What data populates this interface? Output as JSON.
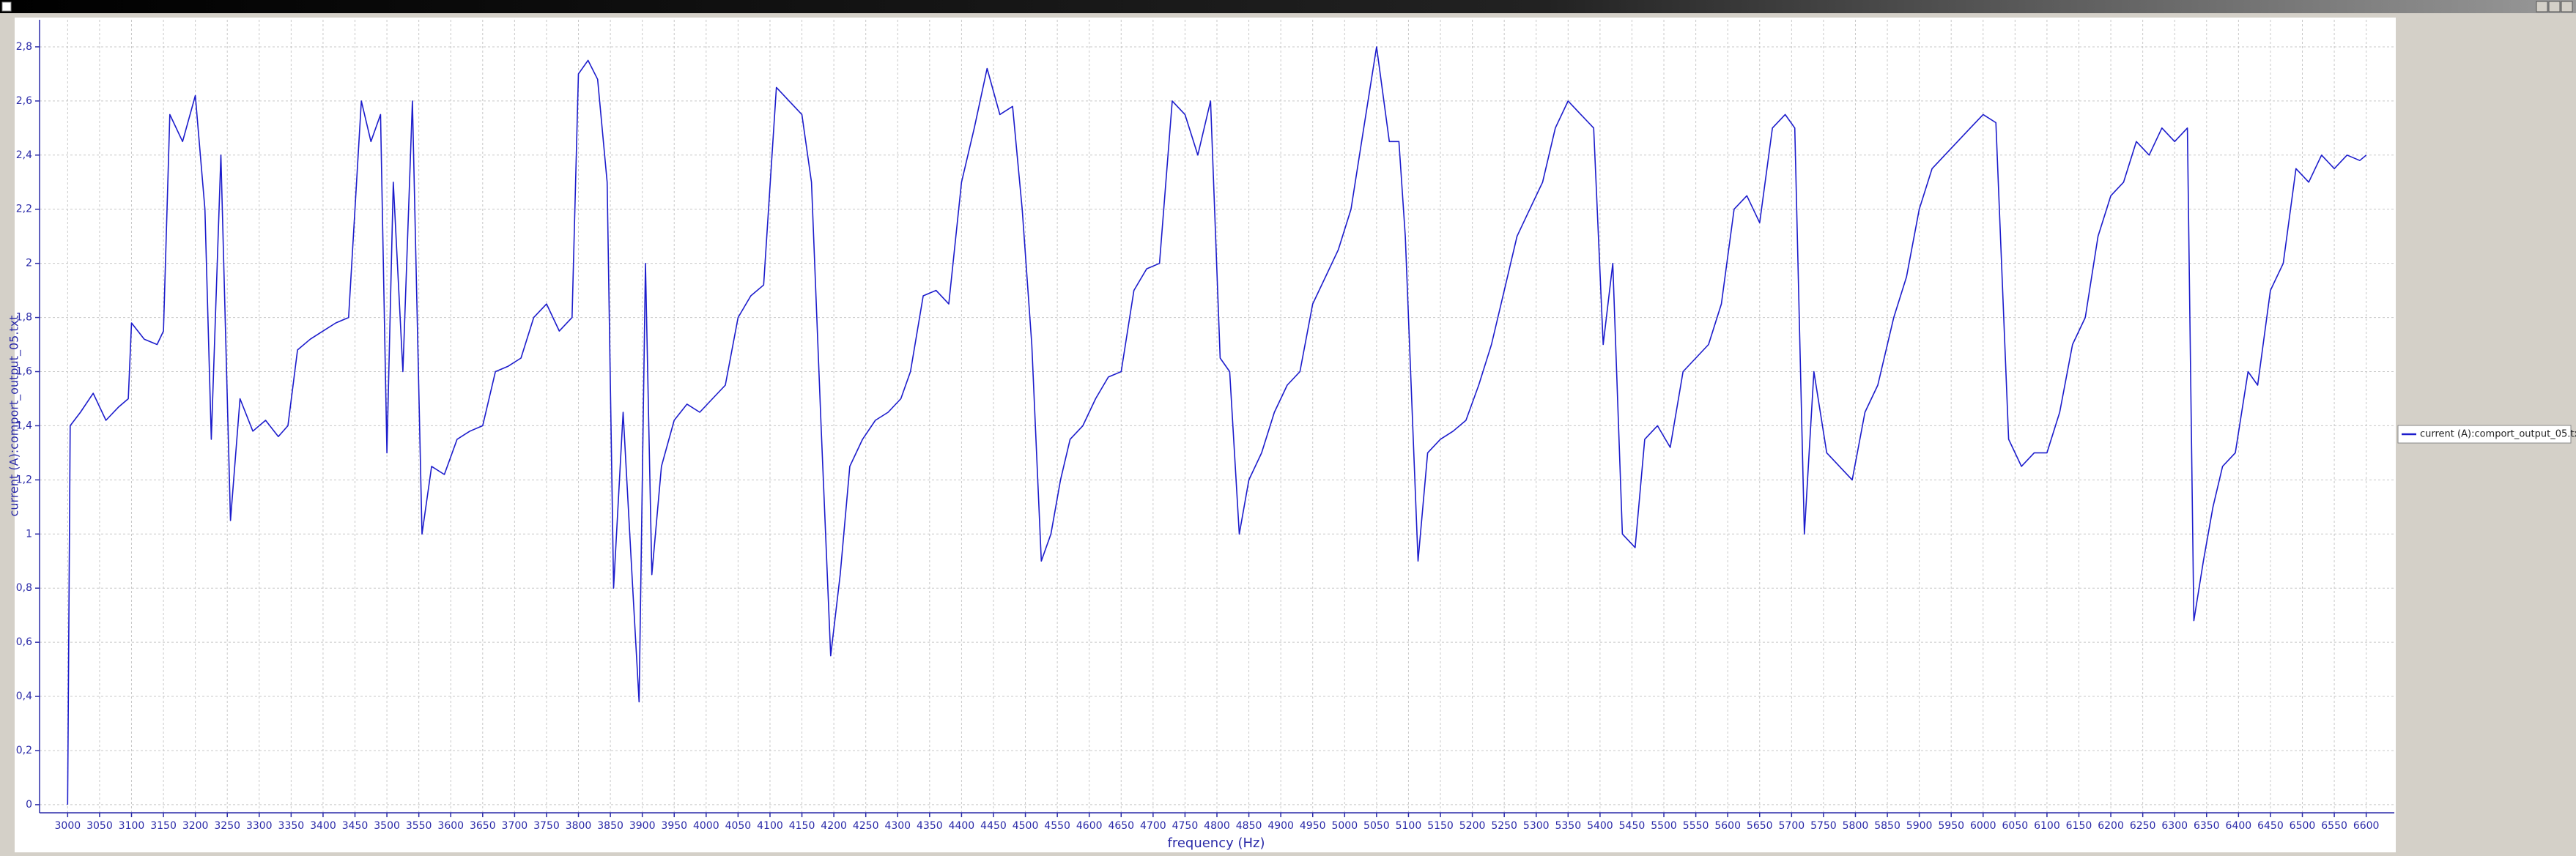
{
  "chart_data": {
    "type": "line",
    "x_label": "frequency (Hz)",
    "y_label": "current (A):comport_output_05.txt",
    "xlim": [
      2956,
      6644
    ],
    "ylim": [
      -0.03,
      2.9
    ],
    "xticks": [
      3000,
      3050,
      3100,
      3150,
      3200,
      3250,
      3300,
      3350,
      3400,
      3450,
      3500,
      3550,
      3600,
      3650,
      3700,
      3750,
      3800,
      3850,
      3900,
      3950,
      4000,
      4050,
      4100,
      4150,
      4200,
      4250,
      4300,
      4350,
      4400,
      4450,
      4500,
      4550,
      4600,
      4650,
      4700,
      4750,
      4800,
      4850,
      4900,
      4950,
      5000,
      5050,
      5100,
      5150,
      5200,
      5250,
      5300,
      5350,
      5400,
      5450,
      5500,
      5550,
      5600,
      5650,
      5700,
      5750,
      5800,
      5850,
      5900,
      5950,
      6000,
      6050,
      6100,
      6150,
      6200,
      6250,
      6300,
      6350,
      6400,
      6450,
      6500,
      6550,
      6600
    ],
    "yticks": [
      0,
      {
        "value": 0.2,
        "label": "0,2"
      },
      {
        "value": 0.4,
        "label": "0,4"
      },
      {
        "value": 0.6,
        "label": "0,6"
      },
      {
        "value": 0.8,
        "label": "0,8"
      },
      1,
      {
        "value": 1.2,
        "label": "1,2"
      },
      {
        "value": 1.4,
        "label": "1,4"
      },
      {
        "value": 1.6,
        "label": "1,6"
      },
      {
        "value": 1.8,
        "label": "1,8"
      },
      2,
      {
        "value": 2.2,
        "label": "2,2"
      },
      {
        "value": 2.4,
        "label": "2,4"
      },
      {
        "value": 2.6,
        "label": "2,6"
      },
      {
        "value": 2.8,
        "label": "2,8"
      }
    ],
    "grid": true,
    "legend": "right",
    "x": [
      3000,
      3004,
      3020,
      3040,
      3060,
      3080,
      3095,
      3100,
      3120,
      3140,
      3150,
      3160,
      3180,
      3200,
      3215,
      3225,
      3240,
      3255,
      3270,
      3290,
      3310,
      3330,
      3345,
      3360,
      3380,
      3400,
      3420,
      3440,
      3460,
      3475,
      3490,
      3500,
      3510,
      3525,
      3540,
      3555,
      3570,
      3590,
      3610,
      3630,
      3650,
      3670,
      3690,
      3710,
      3730,
      3750,
      3770,
      3790,
      3800,
      3815,
      3830,
      3845,
      3855,
      3870,
      3885,
      3895,
      3905,
      3915,
      3930,
      3950,
      3970,
      3990,
      4010,
      4030,
      4050,
      4070,
      4090,
      4110,
      4130,
      4150,
      4165,
      4180,
      4195,
      4210,
      4225,
      4245,
      4265,
      4285,
      4305,
      4320,
      4340,
      4360,
      4380,
      4400,
      4420,
      4440,
      4460,
      4480,
      4495,
      4510,
      4525,
      4540,
      4555,
      4570,
      4590,
      4610,
      4630,
      4650,
      4670,
      4690,
      4710,
      4730,
      4750,
      4770,
      4790,
      4805,
      4820,
      4835,
      4850,
      4870,
      4890,
      4910,
      4930,
      4950,
      4970,
      4990,
      5010,
      5030,
      5050,
      5070,
      5085,
      5095,
      5105,
      5115,
      5130,
      5150,
      5170,
      5190,
      5210,
      5230,
      5250,
      5270,
      5290,
      5310,
      5330,
      5350,
      5370,
      5390,
      5405,
      5420,
      5435,
      5455,
      5470,
      5490,
      5510,
      5530,
      5550,
      5570,
      5590,
      5610,
      5630,
      5650,
      5670,
      5690,
      5705,
      5720,
      5735,
      5755,
      5775,
      5795,
      5815,
      5835,
      5860,
      5880,
      5900,
      5920,
      5940,
      5960,
      5980,
      6000,
      6020,
      6040,
      6060,
      6080,
      6100,
      6120,
      6140,
      6160,
      6180,
      6200,
      6220,
      6240,
      6260,
      6280,
      6300,
      6320,
      6330,
      6345,
      6360,
      6375,
      6395,
      6415,
      6430,
      6450,
      6470,
      6490,
      6510,
      6530,
      6550,
      6570,
      6590,
      6600
    ],
    "series": [
      {
        "name": "current (A):comport_output_05.txt",
        "color": "#1c1ccc",
        "values": [
          0,
          1.4,
          1.45,
          1.52,
          1.42,
          1.47,
          1.5,
          1.78,
          1.72,
          1.7,
          1.75,
          2.55,
          2.45,
          2.62,
          2.2,
          1.35,
          2.4,
          1.05,
          1.5,
          1.38,
          1.42,
          1.36,
          1.4,
          1.68,
          1.72,
          1.75,
          1.78,
          1.8,
          2.6,
          2.45,
          2.55,
          1.3,
          2.3,
          1.6,
          2.6,
          1.0,
          1.25,
          1.22,
          1.35,
          1.38,
          1.4,
          1.6,
          1.62,
          1.65,
          1.8,
          1.85,
          1.75,
          1.8,
          2.7,
          2.75,
          2.68,
          2.3,
          0.8,
          1.45,
          0.8,
          0.38,
          2.0,
          0.85,
          1.25,
          1.42,
          1.48,
          1.45,
          1.5,
          1.55,
          1.8,
          1.88,
          1.92,
          2.65,
          2.6,
          2.55,
          2.3,
          1.4,
          0.55,
          0.85,
          1.25,
          1.35,
          1.42,
          1.45,
          1.5,
          1.6,
          1.88,
          1.9,
          1.85,
          2.3,
          2.5,
          2.72,
          2.55,
          2.58,
          2.2,
          1.7,
          0.9,
          1.0,
          1.2,
          1.35,
          1.4,
          1.5,
          1.58,
          1.6,
          1.9,
          1.98,
          2.0,
          2.6,
          2.55,
          2.4,
          2.6,
          1.65,
          1.6,
          1.0,
          1.2,
          1.3,
          1.45,
          1.55,
          1.6,
          1.85,
          1.95,
          2.05,
          2.2,
          2.5,
          2.8,
          2.45,
          2.45,
          2.1,
          1.5,
          0.9,
          1.3,
          1.35,
          1.38,
          1.42,
          1.55,
          1.7,
          1.9,
          2.1,
          2.2,
          2.3,
          2.5,
          2.6,
          2.55,
          2.5,
          1.7,
          2.0,
          1.0,
          0.95,
          1.35,
          1.4,
          1.32,
          1.6,
          1.65,
          1.7,
          1.85,
          2.2,
          2.25,
          2.15,
          2.5,
          2.55,
          2.5,
          1.0,
          1.6,
          1.3,
          1.25,
          1.2,
          1.45,
          1.55,
          1.8,
          1.95,
          2.2,
          2.35,
          2.4,
          2.45,
          2.5,
          2.55,
          2.52,
          1.35,
          1.25,
          1.3,
          1.3,
          1.45,
          1.7,
          1.8,
          2.1,
          2.25,
          2.3,
          2.45,
          2.4,
          2.5,
          2.45,
          2.5,
          0.68,
          0.9,
          1.1,
          1.25,
          1.3,
          1.6,
          1.55,
          1.9,
          2.0,
          2.35,
          2.3,
          2.4,
          2.35,
          2.4,
          2.38,
          2.4
        ]
      }
    ]
  }
}
